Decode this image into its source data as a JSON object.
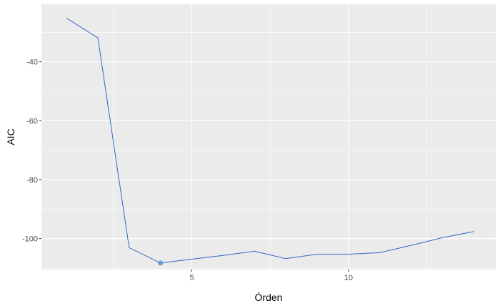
{
  "chart_data": {
    "type": "line",
    "xlabel": "Órden",
    "ylabel": "AIC",
    "x": [
      1,
      2,
      3,
      4,
      5,
      6,
      7,
      8,
      9,
      10,
      11,
      12,
      13,
      14
    ],
    "series": [
      {
        "values": [
          -25.2,
          -31.9,
          -103.1,
          -108.3,
          -107.0,
          -105.7,
          -104.3,
          -106.8,
          -105.3,
          -105.3,
          -104.8,
          -102.3,
          -99.7,
          -97.6
        ]
      }
    ],
    "highlight_point": {
      "x": 4,
      "y": -108.3
    },
    "xlim": [
      0.2,
      14.7
    ],
    "ylim": [
      -110.5,
      -20.5
    ],
    "x_ticks": [
      5,
      10
    ],
    "x_tick_labels": [
      "5",
      "10"
    ],
    "y_ticks": [
      -40,
      -60,
      -80,
      -100
    ],
    "y_tick_labels": [
      "-40",
      "-60",
      "-80",
      "-100"
    ],
    "x_minor_ticks": [
      2.5,
      7.5,
      12.5
    ],
    "y_minor_ticks": [
      -30,
      -50,
      -70,
      -90,
      -110
    ],
    "grid": true,
    "colors": {
      "panel": "#ebebeb",
      "grid": "#ffffff",
      "line": "#3366cc",
      "point": "#6699cc"
    }
  }
}
